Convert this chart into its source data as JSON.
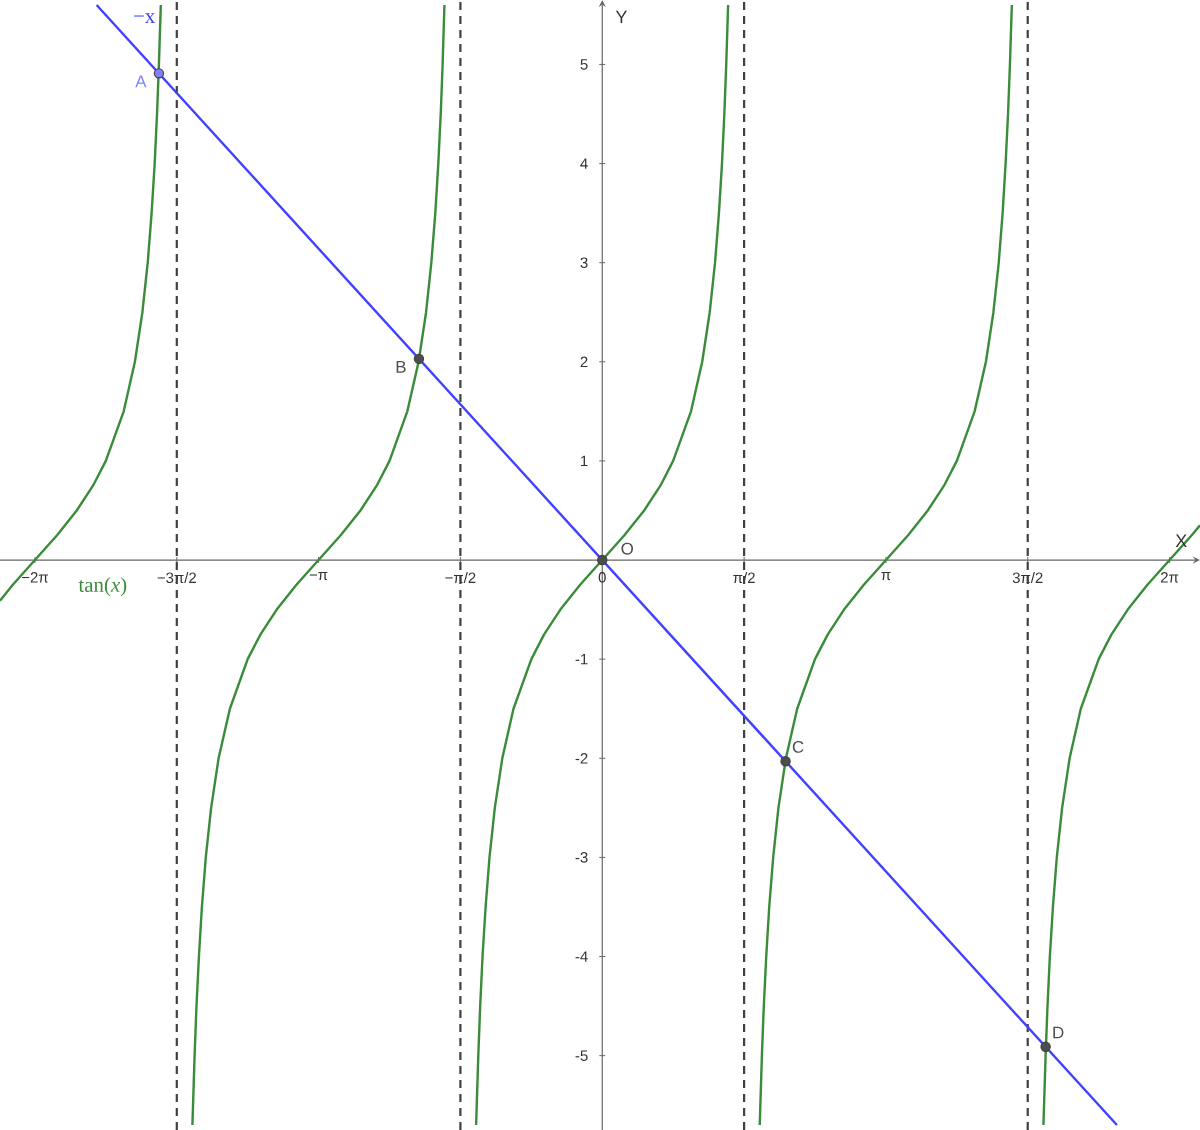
{
  "chart_data": {
    "type": "line",
    "xlabel": "X",
    "ylabel": "Y",
    "xlim": [
      -6.67,
      6.62
    ],
    "ylim": [
      -5.75,
      5.65
    ],
    "xticks": [
      {
        "value": -6.283,
        "label": "−2π"
      },
      {
        "value": -4.712,
        "label": "−3π/2"
      },
      {
        "value": -3.142,
        "label": "−π"
      },
      {
        "value": -1.571,
        "label": "−π/2"
      },
      0,
      {
        "value": 1.571,
        "label": "π/2"
      },
      {
        "value": 3.142,
        "label": "π"
      },
      {
        "value": 4.712,
        "label": "3π/2"
      },
      {
        "value": 6.283,
        "label": "2π"
      }
    ],
    "yticks": [
      -5,
      -4,
      -3,
      -2,
      -1,
      1,
      2,
      3,
      4,
      5
    ],
    "marker": "none",
    "series": [
      {
        "name": "tan(*x*)",
        "color": "#3a8b3a",
        "x": [
          -6.67,
          -6.528,
          -6.283,
          -6.038,
          -5.82,
          -5.64,
          -5.498,
          -5.3,
          -5.176,
          -5.093,
          -5.034,
          -4.991,
          -4.957,
          -4.931,
          -4.91,
          -4.889,
          -4.712,
          -4.539,
          -4.515,
          -4.494,
          -4.467,
          -4.434,
          -4.391,
          -4.332,
          -4.249,
          -4.124,
          -3.927,
          -3.785,
          -3.605,
          -3.387,
          -3.142,
          -2.897,
          -2.678,
          -2.498,
          -2.356,
          -2.159,
          -2.034,
          -1.951,
          -1.893,
          -1.849,
          -1.816,
          -1.789,
          -1.768,
          -1.748,
          -1.571,
          -1.397,
          -1.373,
          -1.352,
          -1.326,
          -1.292,
          -1.249,
          -1.19,
          -1.107,
          -0.983,
          -0.785,
          -0.644,
          -0.464,
          -0.245,
          0,
          0.245,
          0.464,
          0.644,
          0.785,
          0.983,
          1.107,
          1.19,
          1.249,
          1.292,
          1.326,
          1.352,
          1.373,
          1.394,
          1.571,
          1.744,
          1.768,
          1.789,
          1.816,
          1.849,
          1.893,
          1.951,
          2.034,
          2.159,
          2.356,
          2.498,
          2.678,
          2.897,
          3.142,
          3.387,
          3.605,
          3.785,
          3.927,
          4.124,
          4.249,
          4.332,
          4.391,
          4.434,
          4.467,
          4.494,
          4.515,
          4.536,
          4.712,
          4.886,
          4.91,
          4.931,
          4.957,
          4.991,
          5.034,
          5.093,
          5.176,
          5.3,
          5.498,
          5.64,
          5.82,
          6.038,
          6.283,
          6.528,
          6.62
        ],
        "values": [
          -0.41,
          -0.25,
          0,
          0.25,
          0.5,
          0.75,
          1,
          1.5,
          2,
          2.5,
          3,
          3.5,
          4,
          4.5,
          5,
          5.6,
          null,
          -5.7,
          -5,
          -4.5,
          -4,
          -3.5,
          -3,
          -2.5,
          -2,
          -1.5,
          -1,
          -0.75,
          -0.5,
          -0.25,
          0,
          0.25,
          0.5,
          0.75,
          1,
          1.5,
          2,
          2.5,
          3,
          3.5,
          4,
          4.5,
          5,
          5.6,
          null,
          -5.7,
          -5,
          -4.5,
          -4,
          -3.5,
          -3,
          -2.5,
          -2,
          -1.5,
          -1,
          -0.75,
          -0.5,
          -0.25,
          0,
          0.25,
          0.5,
          0.75,
          1,
          1.5,
          2,
          2.5,
          3,
          3.5,
          4,
          4.5,
          5,
          5.6,
          null,
          -5.7,
          -5,
          -4.5,
          -4,
          -3.5,
          -3,
          -2.5,
          -2,
          -1.5,
          -1,
          -0.75,
          -0.5,
          -0.25,
          0,
          0.25,
          0.5,
          0.75,
          1,
          1.5,
          2,
          2.5,
          3,
          3.5,
          4,
          4.5,
          5,
          5.6,
          null,
          -5.7,
          -5,
          -4.5,
          -4,
          -3.5,
          -3,
          -2.5,
          -2,
          -1.5,
          -1,
          -0.75,
          -0.5,
          -0.25,
          0,
          0.25,
          0.35
        ]
      },
      {
        "name": "−x",
        "color": "#4040ff",
        "x": [
          -5.6,
          5.7
        ],
        "values": [
          5.6,
          -5.7
        ]
      },
      {
        "name": "A",
        "type": "scatter",
        "marker": "circle",
        "color": "#7f7fff",
        "x": [
          -4.91
        ],
        "values": [
          4.91
        ]
      },
      {
        "name": "B",
        "type": "scatter",
        "marker": "circle",
        "color": "#4d4d4d",
        "x": [
          -2.03
        ],
        "values": [
          2.03
        ]
      },
      {
        "name": "O",
        "type": "scatter",
        "marker": "circle",
        "color": "#4d4d4d",
        "x": [
          0
        ],
        "values": [
          0
        ]
      },
      {
        "name": "C",
        "type": "scatter",
        "marker": "circle",
        "color": "#4d4d4d",
        "x": [
          2.03
        ],
        "values": [
          -2.03
        ]
      },
      {
        "name": "D",
        "type": "scatter",
        "marker": "circle",
        "color": "#4d4d4d",
        "x": [
          4.91
        ],
        "values": [
          -4.91
        ]
      }
    ],
    "ref_lines": [
      {
        "axis": "x",
        "value": -4.712,
        "color": "#404040",
        "line_style": "dashed"
      },
      {
        "axis": "x",
        "value": -1.571,
        "color": "#404040",
        "line_style": "dashed"
      },
      {
        "axis": "x",
        "value": 1.571,
        "color": "#404040",
        "line_style": "dashed"
      },
      {
        "axis": "x",
        "value": 4.712,
        "color": "#404040",
        "line_style": "dashed"
      }
    ]
  }
}
